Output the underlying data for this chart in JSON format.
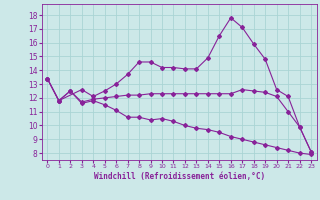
{
  "xlabel": "Windchill (Refroidissement éolien,°C)",
  "bg_color": "#cce8e8",
  "grid_color": "#aad4d4",
  "line_color": "#882299",
  "ylim": [
    7.5,
    18.8
  ],
  "xlim": [
    -0.5,
    23.5
  ],
  "yticks": [
    8,
    9,
    10,
    11,
    12,
    13,
    14,
    15,
    16,
    17,
    18
  ],
  "xticks": [
    0,
    1,
    2,
    3,
    4,
    5,
    6,
    7,
    8,
    9,
    10,
    11,
    12,
    13,
    14,
    15,
    16,
    17,
    18,
    19,
    20,
    21,
    22,
    23
  ],
  "line1_x": [
    0,
    1,
    2,
    3,
    4,
    5,
    6,
    7,
    8,
    9,
    10,
    11,
    12,
    13,
    14,
    15,
    16,
    17,
    18,
    19,
    20,
    21,
    22,
    23
  ],
  "line1_y": [
    13.4,
    11.8,
    12.5,
    11.6,
    11.8,
    11.5,
    11.1,
    10.6,
    10.6,
    10.4,
    10.5,
    10.3,
    10.0,
    9.8,
    9.7,
    9.5,
    9.2,
    9.0,
    8.8,
    8.6,
    8.4,
    8.2,
    8.0,
    7.9
  ],
  "line2_x": [
    0,
    1,
    2,
    3,
    4,
    5,
    6,
    7,
    8,
    9,
    10,
    11,
    12,
    13,
    14,
    15,
    16,
    17,
    18,
    19,
    20,
    21,
    22,
    23
  ],
  "line2_y": [
    13.4,
    11.8,
    12.5,
    11.7,
    11.9,
    12.0,
    12.1,
    12.2,
    12.2,
    12.3,
    12.3,
    12.3,
    12.3,
    12.3,
    12.3,
    12.3,
    12.3,
    12.6,
    12.5,
    12.4,
    12.1,
    11.0,
    9.9,
    8.1
  ],
  "line3_x": [
    0,
    1,
    3,
    4,
    5,
    6,
    7,
    8,
    9,
    10,
    11,
    12,
    13,
    14,
    15,
    16,
    17,
    18,
    19,
    20,
    21,
    22,
    23
  ],
  "line3_y": [
    13.4,
    11.8,
    12.6,
    12.1,
    12.5,
    13.0,
    13.7,
    14.6,
    14.6,
    14.2,
    14.2,
    14.1,
    14.1,
    14.9,
    16.5,
    17.8,
    17.1,
    15.9,
    14.8,
    12.6,
    12.1,
    9.9,
    8.1
  ],
  "marker": "D",
  "markersize": 2.0,
  "linewidth": 0.8
}
